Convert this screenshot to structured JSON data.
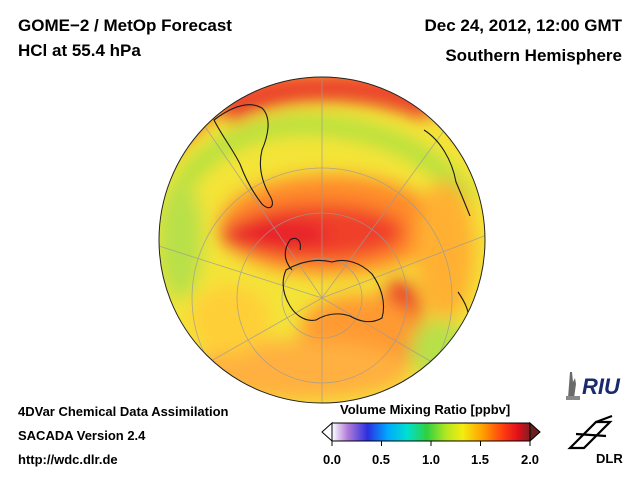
{
  "header": {
    "title_line1": "GOME−2 / MetOp Forecast",
    "title_line2": "HCl at 55.4 hPa",
    "date": "Dec 24, 2012, 12:00 GMT",
    "region": "Southern Hemisphere"
  },
  "footer": {
    "line1": "4DVar Chemical Data Assimilation",
    "line2": "SACADA Version 2.4",
    "line3": "http://wdc.dlr.de"
  },
  "colorbar": {
    "title": "Volume Mixing Ratio [ppbv]",
    "ticks": [
      "0.0",
      "0.5",
      "1.0",
      "1.5",
      "2.0"
    ],
    "range": [
      0.0,
      2.0
    ],
    "colors": [
      "#ffffff",
      "#b07ad8",
      "#2a30e0",
      "#00a8ff",
      "#00e0d0",
      "#30d040",
      "#b8e820",
      "#f4ec10",
      "#ffa000",
      "#ff4010",
      "#e0101c",
      "#802020"
    ]
  },
  "map": {
    "projection": "orthographic",
    "center": "south-pole",
    "colors": {
      "low_orange": "#ffa030",
      "mid_yellow": "#f0e030",
      "green": "#a8e040",
      "high_red": "#f03a2c",
      "peak_red": "#e01c2c"
    }
  },
  "logos": {
    "riu": "RIU",
    "dlr": "DLR"
  }
}
